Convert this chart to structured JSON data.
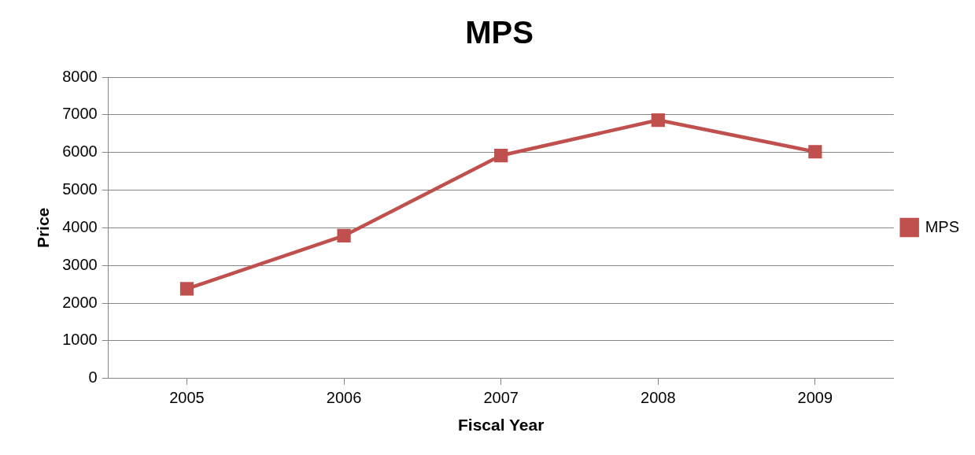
{
  "chart_data": {
    "type": "line",
    "title": "MPS",
    "xlabel": "Fiscal Year",
    "ylabel": "Price",
    "categories": [
      "2005",
      "2006",
      "2007",
      "2008",
      "2009"
    ],
    "series": [
      {
        "name": "MPS",
        "color": "#c0504d",
        "values": [
          2380,
          3790,
          5920,
          6860,
          6020
        ]
      }
    ],
    "ylim": [
      0,
      8000
    ],
    "yticks": [
      0,
      1000,
      2000,
      3000,
      4000,
      5000,
      6000,
      7000,
      8000
    ],
    "grid": "y",
    "legend": "right",
    "marker": "square",
    "line_style": "solid"
  }
}
